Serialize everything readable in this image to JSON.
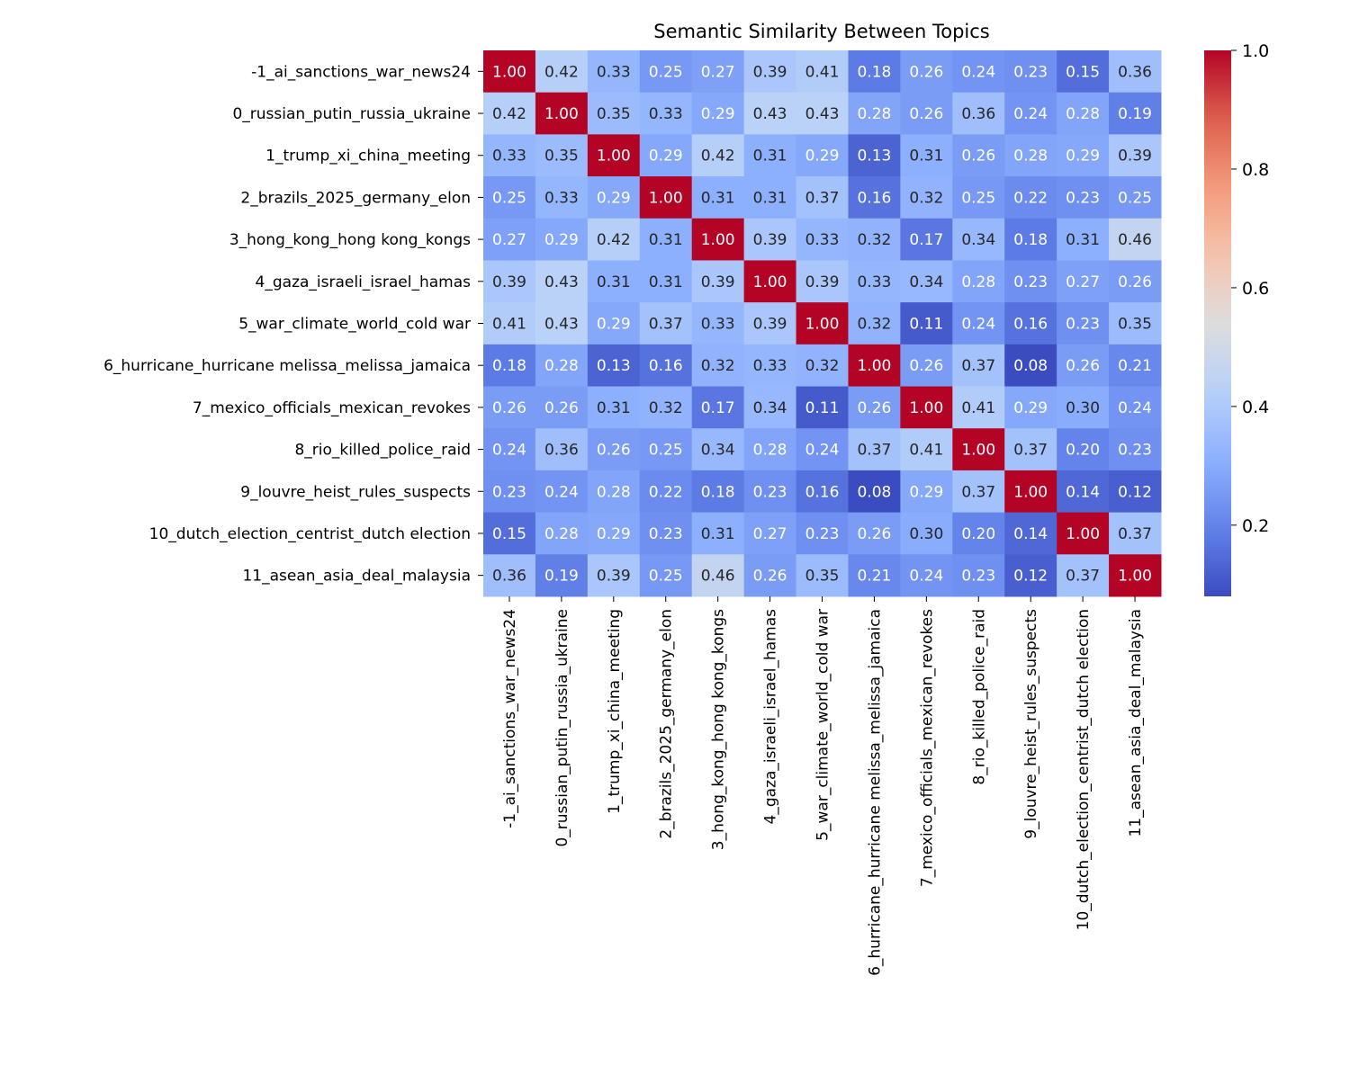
{
  "chart_data": {
    "type": "heatmap",
    "title": "Semantic Similarity Between Topics",
    "xlabel": "",
    "ylabel": "",
    "labels": [
      "-1_ai_sanctions_war_news24",
      "0_russian_putin_russia_ukraine",
      "1_trump_xi_china_meeting",
      "2_brazils_2025_germany_elon",
      "3_hong_kong_hong kong_kongs",
      "4_gaza_israeli_israel_hamas",
      "5_war_climate_world_cold war",
      "6_hurricane_hurricane melissa_melissa_jamaica",
      "7_mexico_officials_mexican_revokes",
      "8_rio_killed_police_raid",
      "9_louvre_heist_rules_suspects",
      "10_dutch_election_centrist_dutch election",
      "11_asean_asia_deal_malaysia"
    ],
    "values": [
      [
        1.0,
        0.42,
        0.33,
        0.25,
        0.27,
        0.39,
        0.41,
        0.18,
        0.26,
        0.24,
        0.23,
        0.15,
        0.36
      ],
      [
        0.42,
        1.0,
        0.35,
        0.33,
        0.29,
        0.43,
        0.43,
        0.28,
        0.26,
        0.36,
        0.24,
        0.28,
        0.19
      ],
      [
        0.33,
        0.35,
        1.0,
        0.29,
        0.42,
        0.31,
        0.29,
        0.13,
        0.31,
        0.26,
        0.28,
        0.29,
        0.39
      ],
      [
        0.25,
        0.33,
        0.29,
        1.0,
        0.31,
        0.31,
        0.37,
        0.16,
        0.32,
        0.25,
        0.22,
        0.23,
        0.25
      ],
      [
        0.27,
        0.29,
        0.42,
        0.31,
        1.0,
        0.39,
        0.33,
        0.32,
        0.17,
        0.34,
        0.18,
        0.31,
        0.46
      ],
      [
        0.39,
        0.43,
        0.31,
        0.31,
        0.39,
        1.0,
        0.39,
        0.33,
        0.34,
        0.28,
        0.23,
        0.27,
        0.26
      ],
      [
        0.41,
        0.43,
        0.29,
        0.37,
        0.33,
        0.39,
        1.0,
        0.32,
        0.11,
        0.24,
        0.16,
        0.23,
        0.35
      ],
      [
        0.18,
        0.28,
        0.13,
        0.16,
        0.32,
        0.33,
        0.32,
        1.0,
        0.26,
        0.37,
        0.08,
        0.26,
        0.21
      ],
      [
        0.26,
        0.26,
        0.31,
        0.32,
        0.17,
        0.34,
        0.11,
        0.26,
        1.0,
        0.41,
        0.29,
        0.3,
        0.24
      ],
      [
        0.24,
        0.36,
        0.26,
        0.25,
        0.34,
        0.28,
        0.24,
        0.37,
        0.41,
        1.0,
        0.37,
        0.2,
        0.23
      ],
      [
        0.23,
        0.24,
        0.28,
        0.22,
        0.18,
        0.23,
        0.16,
        0.08,
        0.29,
        0.37,
        1.0,
        0.14,
        0.12
      ],
      [
        0.15,
        0.28,
        0.29,
        0.23,
        0.31,
        0.27,
        0.23,
        0.26,
        0.3,
        0.2,
        0.14,
        1.0,
        0.37
      ],
      [
        0.36,
        0.19,
        0.39,
        0.25,
        0.46,
        0.26,
        0.35,
        0.21,
        0.24,
        0.23,
        0.12,
        0.37,
        1.0
      ]
    ],
    "colormap": "coolwarm",
    "vmin": 0.08,
    "vmax": 1.0,
    "colorbar": {
      "ticks": [
        0.2,
        0.4,
        0.6,
        0.8,
        1.0
      ],
      "tick_labels": [
        "0.2",
        "0.4",
        "0.6",
        "0.8",
        "1.0"
      ]
    },
    "annotations": true,
    "grid": false,
    "legend": "colorbar-right"
  }
}
